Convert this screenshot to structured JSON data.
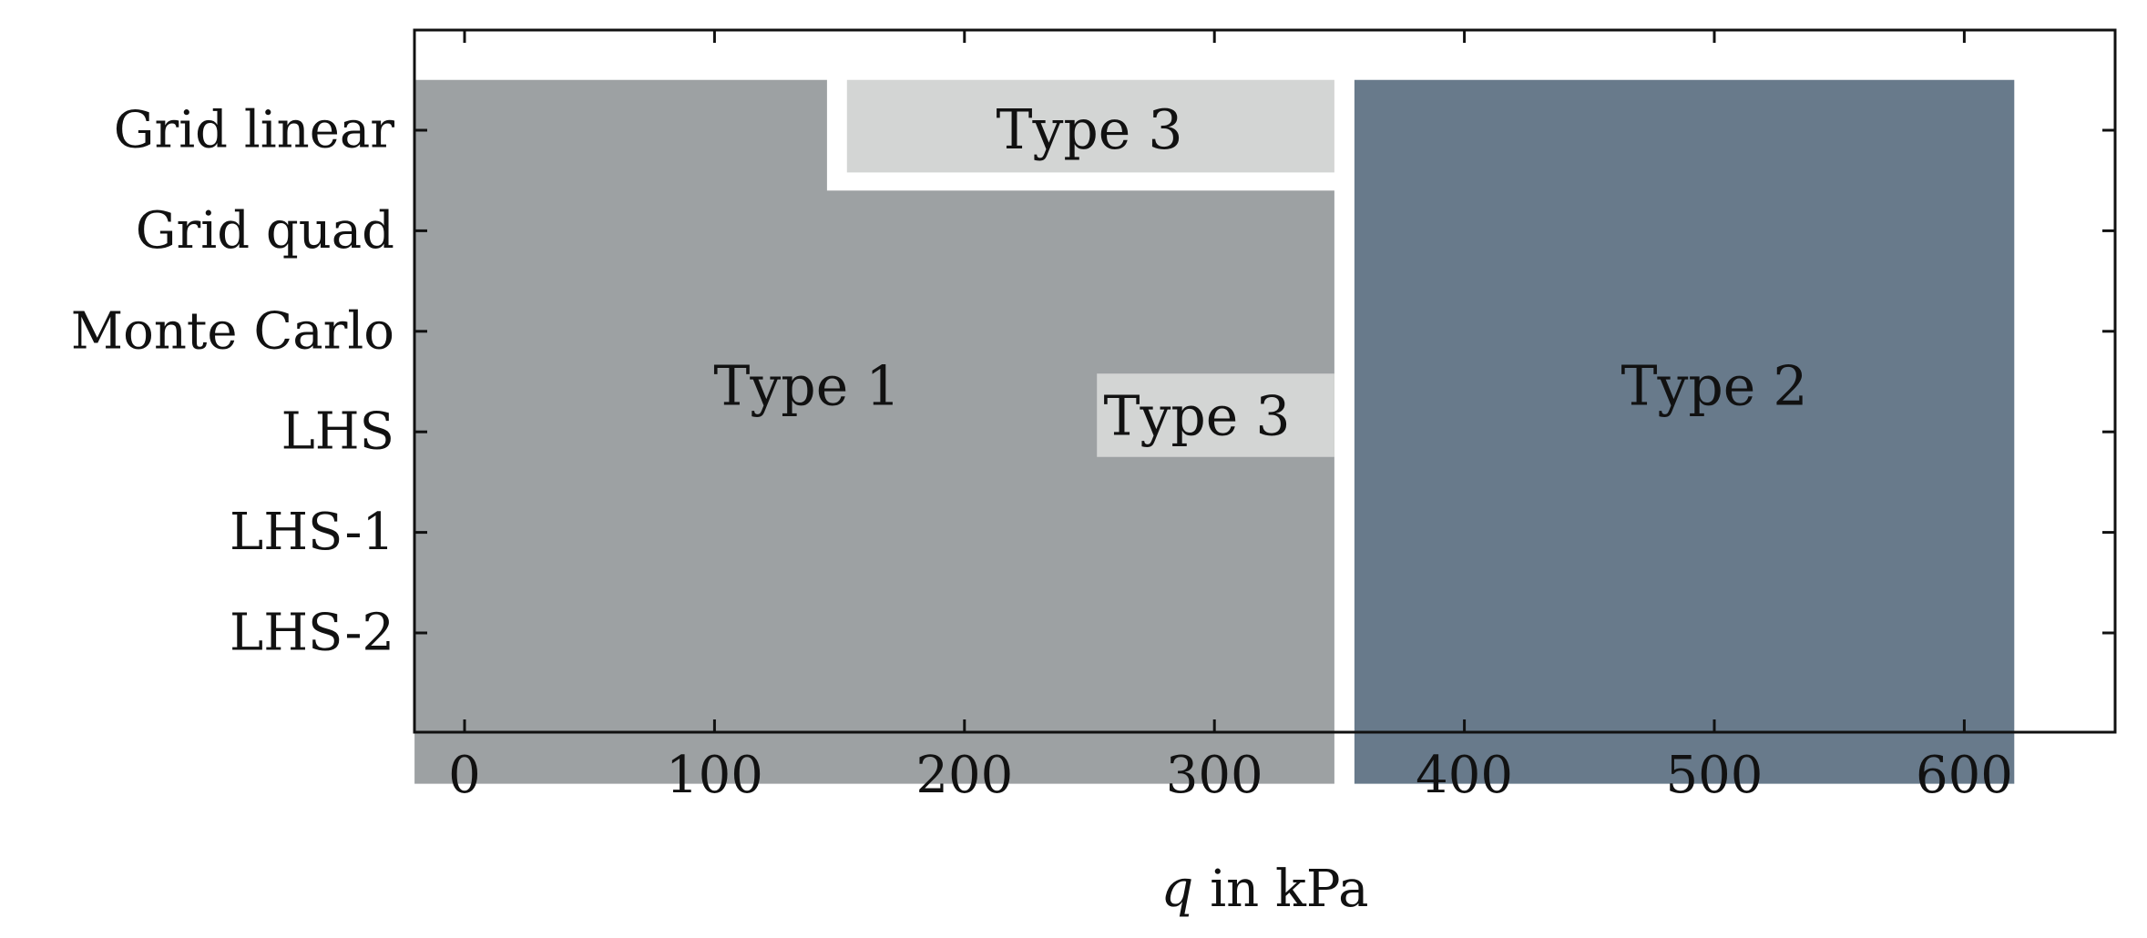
{
  "chart_data": {
    "type": "region-map",
    "title": "",
    "xlabel_var": "q",
    "xlabel_rest": " in kPa",
    "xlim": [
      -40,
      640
    ],
    "xticks": [
      0,
      100,
      200,
      300,
      400,
      500,
      600
    ],
    "categories": [
      "Grid linear",
      "Grid quad",
      "Monte Carlo",
      "LHS",
      "LHS-1",
      "LHS-2"
    ],
    "grid": false,
    "colors": {
      "type1": "#9da1a3",
      "type2": "#687a8b",
      "type3": "#d3d5d4"
    },
    "regions": [
      {
        "label": "Type 1",
        "color_key": "type1",
        "polygon": [
          [
            -20,
            -0.5
          ],
          [
            145,
            -0.5
          ],
          [
            145,
            0.6
          ],
          [
            348,
            0.6
          ],
          [
            348,
            6.5
          ],
          [
            -20,
            6.5
          ]
        ],
        "label_at": [
          137,
          2.55
        ]
      },
      {
        "label": "Type 3",
        "color_key": "type3",
        "polygon": [
          [
            153,
            -0.5
          ],
          [
            348,
            -0.5
          ],
          [
            348,
            0.42
          ],
          [
            153,
            0.42
          ]
        ],
        "label_at": [
          250,
          0.0
        ]
      },
      {
        "label": "Type 3",
        "color_key": "type3",
        "polygon": [
          [
            253,
            2.42
          ],
          [
            348,
            2.42
          ],
          [
            348,
            3.25
          ],
          [
            253,
            3.25
          ]
        ],
        "label_at": [
          293,
          2.85
        ]
      },
      {
        "label": "Type 2",
        "color_key": "type2",
        "polygon": [
          [
            356,
            -0.5
          ],
          [
            620,
            -0.5
          ],
          [
            620,
            6.5
          ],
          [
            356,
            6.5
          ]
        ],
        "label_at": [
          500,
          2.55
        ]
      }
    ]
  }
}
